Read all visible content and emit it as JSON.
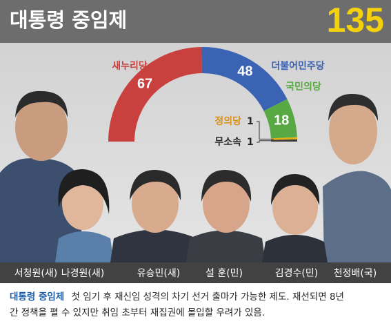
{
  "chart_data": {
    "type": "pie",
    "half": true,
    "title": "대통령 중임제",
    "total": 135,
    "categories": [
      "새누리당",
      "더불어민주당",
      "국민의당",
      "정의당",
      "무소속"
    ],
    "values": [
      67,
      48,
      18,
      1,
      1
    ],
    "colors": [
      "#c9413e",
      "#3a63b3",
      "#58a844",
      "#e2b114",
      "#3a3a3a"
    ],
    "label_colors": [
      "#c9413e",
      "#3a63b3",
      "#58a844",
      "#d9911a",
      "#2a2a2a"
    ]
  },
  "people": [
    "서청원(새)",
    "나경원(새)",
    "유승민(새)",
    "설 훈(민)",
    "김경수(민)",
    "천정배(국)"
  ],
  "caption": {
    "term": "대통령 중임제",
    "lines": [
      "첫 임기 후 재신임 성격의 차기 선거 출마가 가능한 제도. 재선되면 8년",
      "간 정책을 펼 수 있지만 취임 초부터 재집권에 몰입할 우려가 있음."
    ]
  }
}
